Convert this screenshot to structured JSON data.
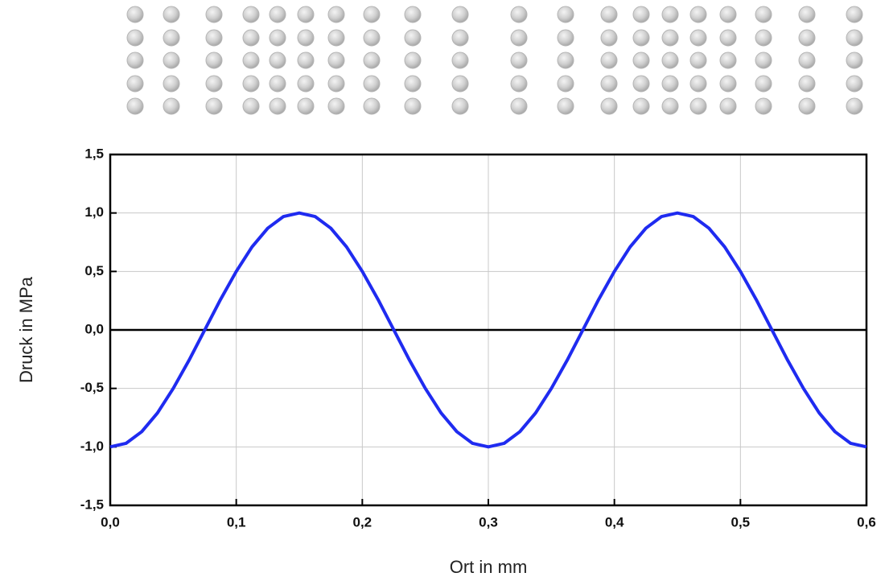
{
  "chart_data": {
    "type": "line",
    "xlabel": "Ort in mm",
    "ylabel": "Druck in MPa",
    "x": [
      0,
      0.0125,
      0.025,
      0.0375,
      0.05,
      0.0625,
      0.075,
      0.0875,
      0.1,
      0.1125,
      0.125,
      0.1375,
      0.15,
      0.1625,
      0.175,
      0.1875,
      0.2,
      0.2125,
      0.225,
      0.2375,
      0.25,
      0.2625,
      0.275,
      0.2875,
      0.3,
      0.3125,
      0.325,
      0.3375,
      0.35,
      0.3625,
      0.375,
      0.3875,
      0.4,
      0.4125,
      0.425,
      0.4375,
      0.45,
      0.4625,
      0.475,
      0.4875,
      0.5,
      0.5125,
      0.525,
      0.5375,
      0.55,
      0.5625,
      0.575,
      0.5875,
      0.6
    ],
    "series": [
      {
        "color": "#1f2bf0",
        "values": [
          -1,
          -0.97,
          -0.87,
          -0.71,
          -0.5,
          -0.26,
          0,
          0.26,
          0.5,
          0.71,
          0.87,
          0.97,
          1,
          0.97,
          0.87,
          0.71,
          0.5,
          0.26,
          0,
          -0.26,
          -0.5,
          -0.71,
          -0.87,
          -0.97,
          -1,
          -0.97,
          -0.87,
          -0.71,
          -0.5,
          -0.26,
          0,
          0.26,
          0.5,
          0.71,
          0.87,
          0.97,
          1,
          0.97,
          0.87,
          0.71,
          0.5,
          0.26,
          0,
          -0.26,
          -0.5,
          -0.71,
          -0.87,
          -0.97,
          -1
        ]
      }
    ],
    "xlim": [
      0,
      0.6
    ],
    "ylim": [
      -1.5,
      1.5
    ],
    "xticks": [
      {
        "value": 0,
        "label": "0,0"
      },
      {
        "value": 0.1,
        "label": "0,1"
      },
      {
        "value": 0.2,
        "label": "0,2"
      },
      {
        "value": 0.3,
        "label": "0,3"
      },
      {
        "value": 0.4,
        "label": "0,4"
      },
      {
        "value": 0.5,
        "label": "0,5"
      },
      {
        "value": 0.6,
        "label": "0,6"
      }
    ],
    "yticks": [
      {
        "value": -1.5,
        "label": "-1,5"
      },
      {
        "value": -1,
        "label": "-1,0"
      },
      {
        "value": -0.5,
        "label": "-0,5"
      },
      {
        "value": 0,
        "label": "0,0"
      },
      {
        "value": 0.5,
        "label": "0,5"
      },
      {
        "value": 1,
        "label": "1,0"
      },
      {
        "value": 1.5,
        "label": "1,5"
      }
    ],
    "grid": true
  }
}
